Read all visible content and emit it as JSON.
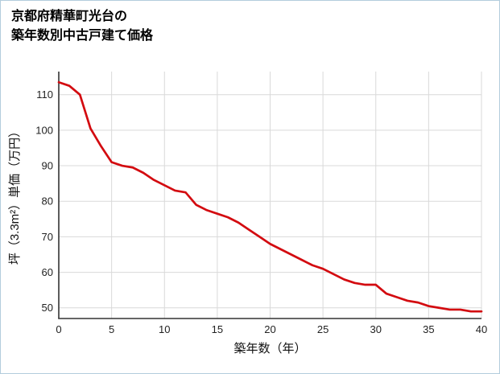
{
  "title": {
    "line1": "京都府精華町光台の",
    "line2": "築年数別中古戸建て価格"
  },
  "chart_data": {
    "type": "line",
    "title": "京都府精華町光台の築年数別中古戸建て価格",
    "xlabel": "築年数（年）",
    "ylabel": "坪（3.3m²）単価（万円）",
    "x": [
      0,
      1,
      2,
      3,
      4,
      5,
      6,
      7,
      8,
      9,
      10,
      11,
      12,
      13,
      14,
      15,
      16,
      17,
      18,
      19,
      20,
      21,
      22,
      23,
      24,
      25,
      26,
      27,
      28,
      29,
      30,
      31,
      32,
      33,
      34,
      35,
      36,
      37,
      38,
      39,
      40
    ],
    "values": [
      113.5,
      112.5,
      110,
      100.5,
      95.5,
      91,
      90,
      89.5,
      88,
      86,
      84.5,
      83,
      82.5,
      79,
      77.5,
      76.5,
      75.5,
      74,
      72,
      70,
      68,
      66.5,
      65,
      63.5,
      62,
      61,
      59.5,
      58,
      57,
      56.5,
      56.5,
      54,
      53,
      52,
      51.5,
      50.5,
      50,
      49.5,
      49.5,
      49,
      49
    ],
    "xlim": [
      0,
      40
    ],
    "ylim": [
      47,
      116.5
    ],
    "xticks": [
      0,
      5,
      10,
      15,
      20,
      25,
      30,
      35,
      40
    ],
    "yticks": [
      50,
      60,
      70,
      80,
      90,
      100,
      110
    ],
    "grid": true,
    "legend": "none",
    "line_color": "#d30b10",
    "grid_color": "#d9d9d9",
    "axis_color": "#333333"
  }
}
